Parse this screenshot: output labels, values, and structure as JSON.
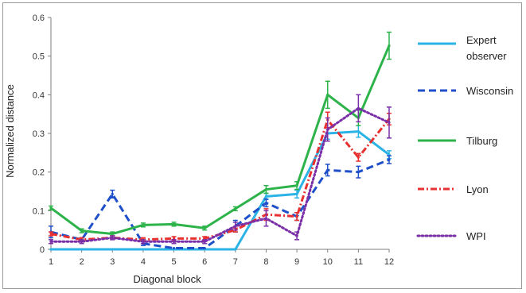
{
  "chart_data": {
    "type": "line",
    "title": "",
    "xlabel": "Diagonal block",
    "ylabel": "Normalized distance",
    "x": [
      1,
      2,
      3,
      4,
      5,
      6,
      7,
      8,
      9,
      10,
      11,
      12
    ],
    "xticks": [
      "1",
      "2",
      "3",
      "4",
      "5",
      "6",
      "7",
      "8",
      "9",
      "10",
      "11",
      "12"
    ],
    "yticks": [
      "0",
      "0.1",
      "0.2",
      "0.3",
      "0.4",
      "0.5",
      "0.6"
    ],
    "ylim": [
      0,
      0.6
    ],
    "grid": false,
    "legend": "right",
    "series": [
      {
        "name": "Expert observer",
        "color": "#2bb3e6",
        "dash": "solid",
        "values": [
          0,
          0,
          0,
          0,
          0,
          0,
          0,
          0.137,
          0.143,
          0.3,
          0.305,
          0.245
        ],
        "errors": [
          0,
          0,
          0,
          0,
          0,
          0,
          0,
          0.008,
          0.01,
          0.015,
          0.015,
          0.01
        ]
      },
      {
        "name": "Wisconsin",
        "color": "#1f4fc9",
        "dash": "longdash",
        "values": [
          0.045,
          0.025,
          0.143,
          0.015,
          0.003,
          0.003,
          0.06,
          0.12,
          0.085,
          0.205,
          0.2,
          0.232
        ],
        "errors": [
          0.015,
          0.005,
          0.01,
          0.005,
          0,
          0,
          0.015,
          0.01,
          0.01,
          0.015,
          0.015,
          0.01
        ]
      },
      {
        "name": "Tilburg",
        "color": "#2db34a",
        "dash": "solid",
        "values": [
          0.107,
          0.048,
          0.04,
          0.063,
          0.065,
          0.055,
          0.105,
          0.155,
          0.165,
          0.4,
          0.34,
          0.527
        ],
        "errors": [
          0.005,
          0.005,
          0.005,
          0.005,
          0.005,
          0.005,
          0.005,
          0.01,
          0.01,
          0.035,
          0.02,
          0.035
        ]
      },
      {
        "name": "Lyon",
        "color": "#e83030",
        "dash": "dashdot",
        "values": [
          0.04,
          0.025,
          0.03,
          0.025,
          0.028,
          0.028,
          0.05,
          0.09,
          0.085,
          0.335,
          0.238,
          0.337
        ],
        "errors": [
          0.005,
          0.005,
          0.005,
          0.005,
          0.005,
          0.005,
          0.005,
          0.015,
          0.01,
          0.02,
          0.01,
          0.015
        ]
      },
      {
        "name": "WPI",
        "color": "#7a2fa8",
        "dash": "dotted",
        "values": [
          0.02,
          0.02,
          0.03,
          0.02,
          0.02,
          0.02,
          0.06,
          0.08,
          0.035,
          0.31,
          0.365,
          0.328
        ],
        "errors": [
          0.005,
          0.005,
          0.005,
          0.005,
          0.005,
          0.005,
          0.01,
          0.02,
          0.01,
          0.03,
          0.035,
          0.04
        ]
      }
    ]
  }
}
